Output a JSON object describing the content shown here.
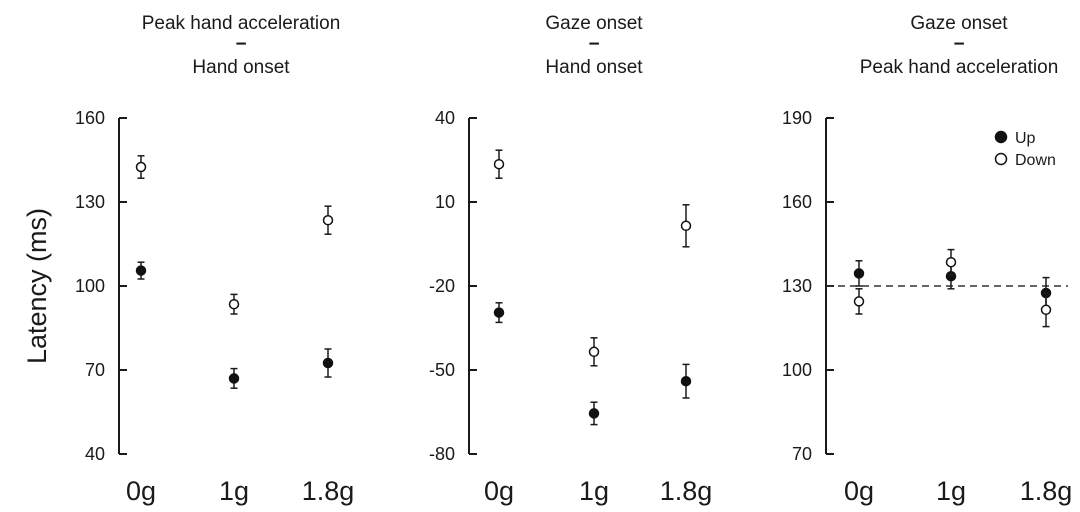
{
  "ylabel": "Latency (ms)",
  "chart_data": [
    {
      "type": "scatter",
      "title_top": "Peak hand acceleration",
      "title_bottom": "Hand onset",
      "title_operator": "−",
      "categories": [
        "0g",
        "1g",
        "1.8g"
      ],
      "ylim": [
        40,
        160
      ],
      "yticks": [
        40,
        70,
        100,
        130,
        160
      ],
      "series": [
        {
          "name": "Up",
          "values": [
            105.5,
            67,
            72.5
          ],
          "errors": [
            3,
            3.5,
            5
          ]
        },
        {
          "name": "Down",
          "values": [
            142.5,
            93.5,
            123.5
          ],
          "errors": [
            4,
            3.5,
            5
          ]
        }
      ]
    },
    {
      "type": "scatter",
      "title_top": "Gaze onset",
      "title_bottom": "Hand onset",
      "title_operator": "−",
      "categories": [
        "0g",
        "1g",
        "1.8g"
      ],
      "ylim": [
        -80,
        40
      ],
      "yticks": [
        -80,
        -50,
        -20,
        10,
        40
      ],
      "series": [
        {
          "name": "Up",
          "values": [
            -29.5,
            -65.5,
            -54
          ],
          "errors": [
            3.5,
            4,
            6
          ]
        },
        {
          "name": "Down",
          "values": [
            23.5,
            -43.5,
            1.5
          ],
          "errors": [
            5,
            5,
            7.5
          ]
        }
      ]
    },
    {
      "type": "scatter",
      "title_top": "Gaze onset",
      "title_bottom": "Peak hand acceleration",
      "title_operator": "−",
      "categories": [
        "0g",
        "1g",
        "1.8g"
      ],
      "ylim": [
        70,
        190
      ],
      "yticks": [
        70,
        100,
        130,
        160,
        190
      ],
      "reference_line": 130,
      "legend": {
        "position": "top-right"
      },
      "series": [
        {
          "name": "Up",
          "values": [
            134.5,
            133.5,
            127.5
          ],
          "errors": [
            4.5,
            4.5,
            5.5
          ]
        },
        {
          "name": "Down",
          "values": [
            124.5,
            138.5,
            121.5
          ],
          "errors": [
            4.5,
            4.5,
            6
          ]
        }
      ]
    }
  ]
}
